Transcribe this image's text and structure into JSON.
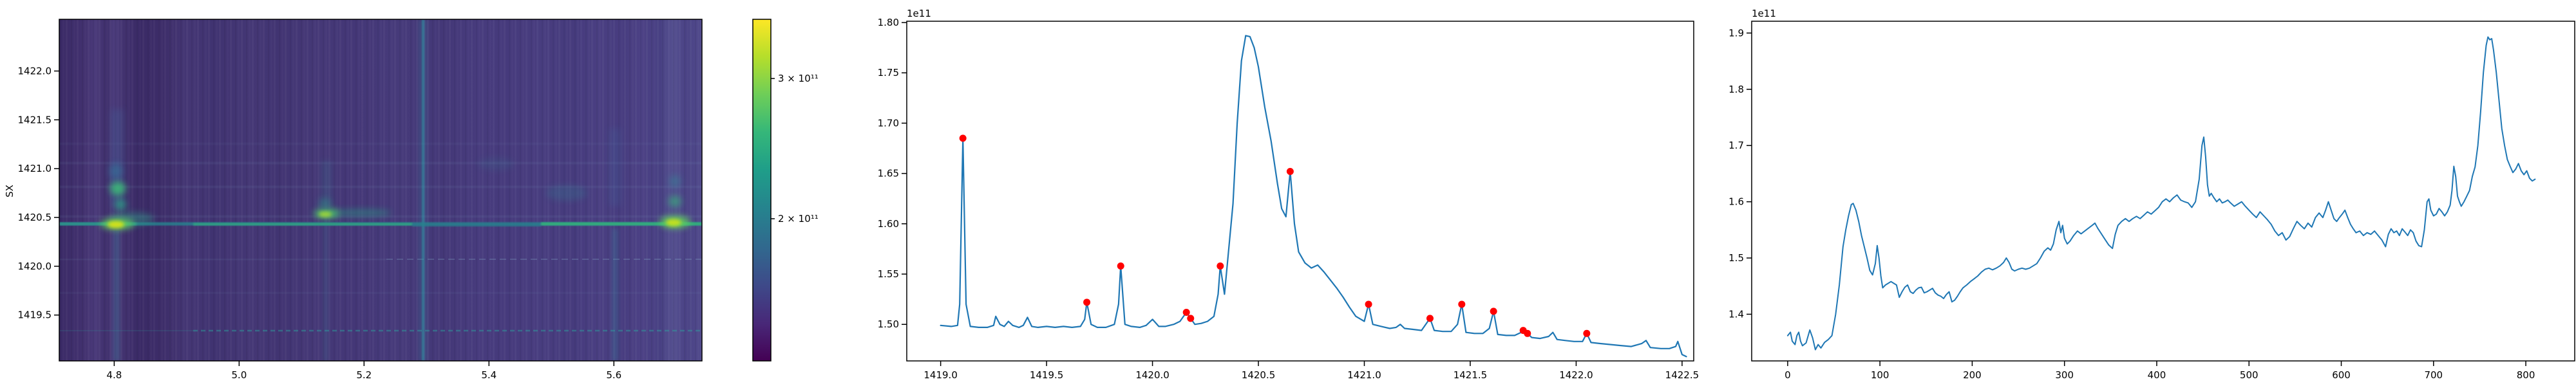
{
  "colors": {
    "line": "#1f77b4",
    "marker": "#ff0000",
    "background": "#ffffff",
    "text": "#000000",
    "viridis_low": "#440154",
    "viridis_high": "#fde725"
  },
  "chart_data": [
    {
      "id": "waterfall",
      "type": "heatmap",
      "title": "",
      "xlabel": "",
      "ylabel": "SX",
      "colormap": "viridis",
      "xlim": [
        4.712,
        5.741
      ],
      "ylim": [
        1419.03,
        1422.53
      ],
      "xticks": [
        4.8,
        5.0,
        5.2,
        5.4,
        5.6
      ],
      "xtick_labels": [
        "4.8",
        "5.0",
        "5.2",
        "5.4",
        "5.6"
      ],
      "yticks": [
        1422.0,
        1421.5,
        1421.0,
        1420.5,
        1420.0,
        1419.5
      ],
      "ytick_labels": [
        "1422.0",
        "1421.5",
        "1421.0",
        "1420.5",
        "1420.0",
        "1419.5"
      ],
      "colorbar": {
        "scale": "log",
        "vmin_approx": 133000000000.0,
        "vmax_approx": 355000000000.0,
        "ticks": [
          {
            "value": 300000000000.0,
            "label": "3 × 10¹¹"
          },
          {
            "value": 200000000000.0,
            "label": "2 × 10¹¹"
          }
        ]
      },
      "features": {
        "bright_horizontal_line_y": 1420.42,
        "bright_blob_times": [
          4.8,
          5.13,
          5.68
        ],
        "blob_freq_extent": [
          1420.3,
          1421.0
        ],
        "teal_vertical_line_time": 5.3,
        "faint_row_freqs": [
          1421.05,
          1420.6,
          1420.3,
          1419.85,
          1419.1
        ]
      }
    },
    {
      "id": "spectrum",
      "type": "line",
      "offset_text": "1e11",
      "units_scale": "1e11",
      "xlim": [
        1418.84,
        1422.555
      ],
      "ylim": [
        1.4637,
        1.8013
      ],
      "xticks": [
        1419.0,
        1419.5,
        1420.0,
        1420.5,
        1421.0,
        1421.5,
        1422.0,
        1422.5
      ],
      "xtick_labels": [
        "1419.0",
        "1419.5",
        "1420.0",
        "1420.5",
        "1421.0",
        "1421.5",
        "1422.0",
        "1422.5"
      ],
      "yticks": [
        1.8,
        1.75,
        1.7,
        1.65,
        1.6,
        1.55,
        1.5
      ],
      "ytick_labels": [
        "1.80",
        "1.75",
        "1.70",
        "1.65",
        "1.60",
        "1.55",
        "1.50"
      ],
      "x": [
        1419.0,
        1419.05,
        1419.08,
        1419.09,
        1419.105,
        1419.12,
        1419.14,
        1419.18,
        1419.22,
        1419.25,
        1419.26,
        1419.28,
        1419.3,
        1419.32,
        1419.34,
        1419.37,
        1419.39,
        1419.41,
        1419.43,
        1419.46,
        1419.5,
        1419.54,
        1419.58,
        1419.62,
        1419.66,
        1419.68,
        1419.69,
        1419.71,
        1419.74,
        1419.78,
        1419.82,
        1419.84,
        1419.85,
        1419.87,
        1419.9,
        1419.94,
        1419.97,
        1420.0,
        1420.03,
        1420.06,
        1420.1,
        1420.13,
        1420.16,
        1420.18,
        1420.2,
        1420.23,
        1420.26,
        1420.29,
        1420.31,
        1420.32,
        1420.34,
        1420.36,
        1420.38,
        1420.4,
        1420.42,
        1420.44,
        1420.46,
        1420.48,
        1420.5,
        1420.53,
        1420.56,
        1420.59,
        1420.61,
        1420.63,
        1420.65,
        1420.67,
        1420.69,
        1420.72,
        1420.75,
        1420.78,
        1420.81,
        1420.84,
        1420.87,
        1420.9,
        1420.93,
        1420.96,
        1421.0,
        1421.02,
        1421.04,
        1421.08,
        1421.12,
        1421.15,
        1421.17,
        1421.19,
        1421.23,
        1421.27,
        1421.31,
        1421.33,
        1421.37,
        1421.41,
        1421.44,
        1421.46,
        1421.48,
        1421.52,
        1421.56,
        1421.59,
        1421.61,
        1421.63,
        1421.67,
        1421.71,
        1421.74,
        1421.75,
        1421.77,
        1421.79,
        1421.83,
        1421.87,
        1421.89,
        1421.91,
        1421.95,
        1421.99,
        1422.03,
        1422.05,
        1422.07,
        1422.11,
        1422.16,
        1422.21,
        1422.26,
        1422.31,
        1422.33,
        1422.35,
        1422.4,
        1422.44,
        1422.47,
        1422.48,
        1422.5,
        1422.52
      ],
      "y": [
        1.499,
        1.498,
        1.499,
        1.52,
        1.685,
        1.52,
        1.498,
        1.497,
        1.497,
        1.499,
        1.508,
        1.5,
        1.498,
        1.503,
        1.499,
        1.497,
        1.499,
        1.507,
        1.498,
        1.497,
        1.498,
        1.497,
        1.498,
        1.497,
        1.498,
        1.505,
        1.522,
        1.5,
        1.497,
        1.497,
        1.5,
        1.52,
        1.558,
        1.5,
        1.498,
        1.497,
        1.499,
        1.505,
        1.498,
        1.498,
        1.5,
        1.503,
        1.512,
        1.506,
        1.5,
        1.501,
        1.503,
        1.508,
        1.53,
        1.558,
        1.53,
        1.575,
        1.62,
        1.7,
        1.762,
        1.787,
        1.786,
        1.775,
        1.756,
        1.716,
        1.682,
        1.64,
        1.615,
        1.607,
        1.652,
        1.6,
        1.572,
        1.561,
        1.556,
        1.559,
        1.552,
        1.544,
        1.536,
        1.527,
        1.517,
        1.508,
        1.503,
        1.52,
        1.5,
        1.498,
        1.496,
        1.497,
        1.5,
        1.496,
        1.495,
        1.494,
        1.506,
        1.494,
        1.493,
        1.493,
        1.5,
        1.52,
        1.492,
        1.491,
        1.491,
        1.496,
        1.513,
        1.49,
        1.489,
        1.489,
        1.492,
        1.494,
        1.491,
        1.487,
        1.486,
        1.488,
        1.492,
        1.485,
        1.484,
        1.483,
        1.483,
        1.491,
        1.482,
        1.481,
        1.48,
        1.479,
        1.478,
        1.481,
        1.484,
        1.477,
        1.476,
        1.476,
        1.478,
        1.483,
        1.47,
        1.468
      ],
      "peaks": {
        "x": [
          1419.105,
          1419.69,
          1419.85,
          1420.16,
          1420.18,
          1420.32,
          1420.65,
          1421.02,
          1421.31,
          1421.46,
          1421.61,
          1421.75,
          1421.77,
          1422.05
        ],
        "y": [
          1.685,
          1.522,
          1.558,
          1.512,
          1.506,
          1.558,
          1.652,
          1.52,
          1.506,
          1.52,
          1.513,
          1.494,
          1.491,
          1.491
        ]
      }
    },
    {
      "id": "power_series",
      "type": "line",
      "offset_text": "1e11",
      "units_scale": "1e11",
      "xlim": [
        -39,
        853
      ],
      "ylim": [
        1.317,
        1.921
      ],
      "xticks": [
        0,
        100,
        200,
        300,
        400,
        500,
        600,
        700,
        800
      ],
      "xtick_labels": [
        "0",
        "100",
        "200",
        "300",
        "400",
        "500",
        "600",
        "700",
        "800"
      ],
      "yticks": [
        1.9,
        1.8,
        1.7,
        1.6,
        1.5,
        1.4
      ],
      "ytick_labels": [
        "1.9",
        "1.8",
        "1.7",
        "1.6",
        "1.5",
        "1.4"
      ],
      "x": [
        0,
        3,
        5,
        8,
        10,
        12,
        14,
        16,
        20,
        24,
        27,
        30,
        33,
        36,
        40,
        44,
        48,
        52,
        56,
        60,
        63,
        66,
        69,
        71,
        74,
        77,
        80,
        83,
        86,
        89,
        92,
        95,
        97,
        99,
        101,
        103,
        106,
        109,
        112,
        115,
        118,
        121,
        124,
        127,
        130,
        133,
        136,
        139,
        142,
        145,
        148,
        151,
        154,
        157,
        160,
        163,
        166,
        169,
        172,
        175,
        178,
        181,
        184,
        187,
        190,
        194,
        198,
        202,
        206,
        210,
        214,
        218,
        222,
        226,
        230,
        234,
        237,
        240,
        243,
        246,
        250,
        254,
        258,
        262,
        266,
        270,
        274,
        278,
        282,
        285,
        288,
        291,
        294,
        296,
        298,
        300,
        303,
        306,
        310,
        314,
        318,
        322,
        326,
        330,
        333,
        336,
        340,
        344,
        348,
        352,
        355,
        358,
        362,
        366,
        370,
        374,
        378,
        382,
        386,
        390,
        394,
        398,
        402,
        406,
        410,
        414,
        418,
        422,
        426,
        430,
        434,
        438,
        442,
        446,
        449,
        451,
        453,
        455,
        457,
        459,
        462,
        465,
        468,
        471,
        474,
        477,
        480,
        484,
        488,
        492,
        496,
        500,
        504,
        508,
        512,
        516,
        520,
        524,
        528,
        532,
        536,
        540,
        544,
        548,
        552,
        556,
        560,
        564,
        568,
        572,
        576,
        580,
        583,
        586,
        589,
        592,
        595,
        598,
        601,
        604,
        607,
        610,
        613,
        616,
        620,
        624,
        628,
        632,
        636,
        640,
        644,
        648,
        651,
        654,
        657,
        660,
        663,
        666,
        669,
        672,
        675,
        678,
        681,
        684,
        687,
        690,
        693,
        695,
        697,
        700,
        703,
        706,
        709,
        712,
        715,
        718,
        720,
        722,
        724,
        726,
        728,
        730,
        733,
        736,
        739,
        742,
        745,
        748,
        751,
        754,
        757,
        759,
        761,
        763,
        765,
        768,
        771,
        774,
        777,
        780,
        783,
        786,
        789,
        792,
        795,
        798,
        801,
        804,
        807,
        810
      ],
      "y": [
        1.362,
        1.368,
        1.352,
        1.346,
        1.362,
        1.368,
        1.352,
        1.344,
        1.349,
        1.372,
        1.358,
        1.337,
        1.346,
        1.34,
        1.35,
        1.355,
        1.362,
        1.4,
        1.452,
        1.52,
        1.55,
        1.575,
        1.595,
        1.597,
        1.585,
        1.565,
        1.54,
        1.52,
        1.5,
        1.478,
        1.47,
        1.49,
        1.522,
        1.5,
        1.468,
        1.447,
        1.452,
        1.455,
        1.458,
        1.455,
        1.452,
        1.43,
        1.44,
        1.448,
        1.452,
        1.44,
        1.437,
        1.443,
        1.447,
        1.448,
        1.438,
        1.44,
        1.443,
        1.446,
        1.438,
        1.434,
        1.432,
        1.428,
        1.435,
        1.44,
        1.422,
        1.425,
        1.432,
        1.44,
        1.447,
        1.452,
        1.458,
        1.463,
        1.468,
        1.475,
        1.48,
        1.482,
        1.479,
        1.482,
        1.486,
        1.492,
        1.5,
        1.492,
        1.48,
        1.477,
        1.48,
        1.482,
        1.48,
        1.482,
        1.486,
        1.49,
        1.5,
        1.512,
        1.518,
        1.514,
        1.525,
        1.55,
        1.565,
        1.545,
        1.558,
        1.535,
        1.525,
        1.53,
        1.54,
        1.548,
        1.543,
        1.548,
        1.553,
        1.558,
        1.562,
        1.553,
        1.543,
        1.533,
        1.523,
        1.517,
        1.542,
        1.558,
        1.565,
        1.57,
        1.565,
        1.57,
        1.574,
        1.57,
        1.576,
        1.582,
        1.578,
        1.584,
        1.59,
        1.6,
        1.605,
        1.6,
        1.607,
        1.612,
        1.603,
        1.6,
        1.598,
        1.59,
        1.6,
        1.64,
        1.7,
        1.715,
        1.68,
        1.63,
        1.61,
        1.615,
        1.607,
        1.6,
        1.605,
        1.598,
        1.6,
        1.603,
        1.598,
        1.592,
        1.596,
        1.6,
        1.592,
        1.585,
        1.578,
        1.572,
        1.582,
        1.575,
        1.568,
        1.56,
        1.548,
        1.54,
        1.545,
        1.532,
        1.538,
        1.552,
        1.565,
        1.558,
        1.552,
        1.562,
        1.555,
        1.572,
        1.58,
        1.572,
        1.585,
        1.6,
        1.585,
        1.57,
        1.565,
        1.572,
        1.578,
        1.585,
        1.572,
        1.56,
        1.552,
        1.545,
        1.548,
        1.54,
        1.545,
        1.542,
        1.548,
        1.54,
        1.532,
        1.52,
        1.542,
        1.552,
        1.545,
        1.548,
        1.54,
        1.552,
        1.546,
        1.54,
        1.55,
        1.545,
        1.53,
        1.522,
        1.52,
        1.55,
        1.6,
        1.605,
        1.585,
        1.575,
        1.578,
        1.588,
        1.582,
        1.575,
        1.582,
        1.594,
        1.62,
        1.663,
        1.645,
        1.61,
        1.6,
        1.592,
        1.6,
        1.61,
        1.62,
        1.645,
        1.662,
        1.7,
        1.76,
        1.83,
        1.878,
        1.893,
        1.888,
        1.89,
        1.87,
        1.83,
        1.78,
        1.73,
        1.7,
        1.675,
        1.663,
        1.652,
        1.658,
        1.668,
        1.655,
        1.648,
        1.655,
        1.642,
        1.637,
        1.64
      ]
    }
  ]
}
